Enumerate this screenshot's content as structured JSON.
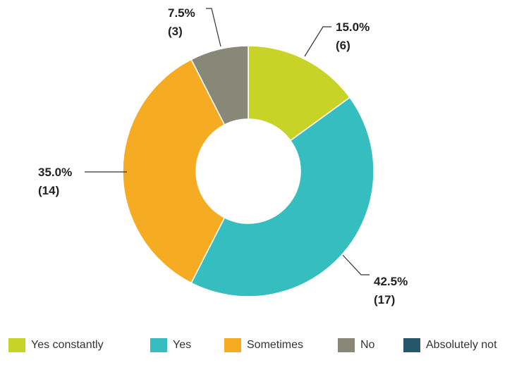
{
  "chart_data": {
    "type": "pie",
    "variant": "donut",
    "title": "",
    "slices": [
      {
        "label": "Yes constantly",
        "percent": 15.0,
        "count": 6,
        "value_label": "15.0%",
        "count_label": "(6)",
        "color": "#c8d328"
      },
      {
        "label": "Yes",
        "percent": 42.5,
        "count": 17,
        "value_label": "42.5%",
        "count_label": "(17)",
        "color": "#35bdbf"
      },
      {
        "label": "Sometimes",
        "percent": 35.0,
        "count": 14,
        "value_label": "35.0%",
        "count_label": "(14)",
        "color": "#f5ac22"
      },
      {
        "label": "No",
        "percent": 7.5,
        "count": 3,
        "value_label": "7.5%",
        "count_label": "(3)",
        "color": "#888878"
      },
      {
        "label": "Absolutely not",
        "percent": 0.0,
        "count": 0,
        "color": "#26566a"
      }
    ],
    "legend": {
      "position": "bottom",
      "items": [
        "Yes constantly",
        "Yes",
        "Sometimes",
        "No",
        "Absolutely not"
      ]
    }
  }
}
